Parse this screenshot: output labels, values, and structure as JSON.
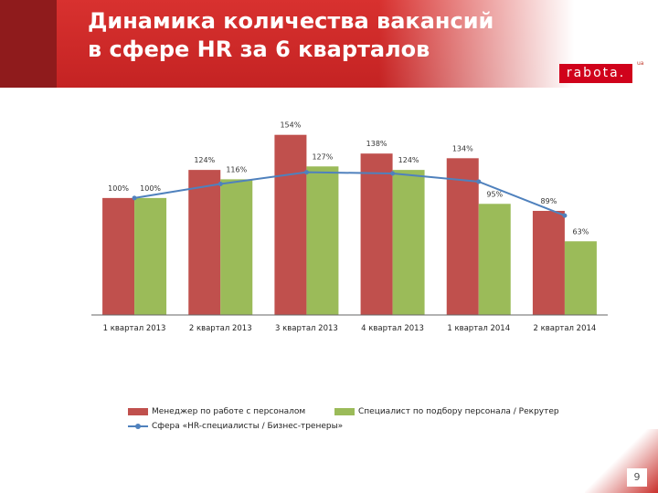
{
  "header": {
    "title_line1": "Динамика количества вакансий",
    "title_line2": "в сфере HR за 6 кварталов",
    "logo": "rabota.",
    "logo_suffix": "ua"
  },
  "colors": {
    "bar_manager": "#c0504d",
    "bar_recruiter": "#9bbb59",
    "line_hr": "#4f81bd",
    "header": "#c42323"
  },
  "chart_data": {
    "type": "bar",
    "categories": [
      "1 квартал 2013",
      "2 квартал 2013",
      "3 квартал 2013",
      "4 квартал 2013",
      "1 квартал 2014",
      "2 квартал 2014"
    ],
    "series": [
      {
        "name": "Менеджер по работе с персоналом",
        "type": "bar",
        "values": [
          100,
          124,
          154,
          138,
          134,
          89
        ],
        "labels": [
          "100%",
          "124%",
          "154%",
          "138%",
          "134%",
          "89%"
        ]
      },
      {
        "name": "Специалист по подбору персонала / Рекрутер",
        "type": "bar",
        "values": [
          100,
          116,
          127,
          124,
          95,
          63
        ],
        "labels": [
          "100%",
          "116%",
          "127%",
          "124%",
          "95%",
          "63%"
        ]
      },
      {
        "name": "Сфера «HR-специалисты / Бизнес-тренеры»",
        "type": "line",
        "values": [
          100,
          112,
          122,
          121,
          114,
          85
        ]
      }
    ],
    "ylim": [
      0,
      160
    ],
    "grid": false,
    "legend_position": "bottom"
  },
  "page_number": "9"
}
